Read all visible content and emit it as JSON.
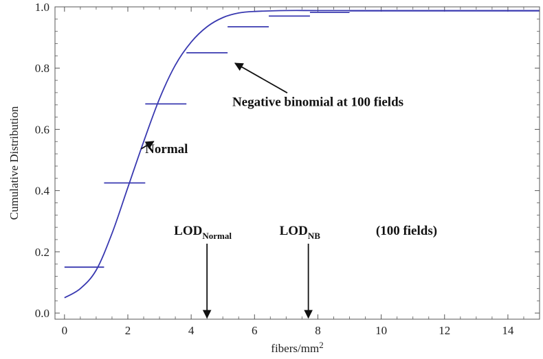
{
  "chart_data": {
    "type": "line",
    "xlabel": "fibers/mm",
    "xlabel_sup": "2",
    "ylabel": "Cumulative Distribution",
    "xlim": [
      -0.3,
      15
    ],
    "ylim": [
      -0.02,
      1.0
    ],
    "x_ticks": [
      0,
      2,
      4,
      6,
      8,
      10,
      12,
      14
    ],
    "y_ticks": [
      0.0,
      0.2,
      0.4,
      0.6,
      0.8,
      1.0
    ],
    "x_tick_labels": [
      "0",
      "2",
      "4",
      "6",
      "8",
      "10",
      "12",
      "14"
    ],
    "y_tick_labels": [
      "0.0",
      "0.2",
      "0.4",
      "0.6",
      "0.8",
      "1.0"
    ],
    "grid": false,
    "color": "#3838b0",
    "series": [
      {
        "kind": "curve",
        "x": [
          0,
          0.5,
          1,
          1.5,
          2,
          2.5,
          3,
          3.5,
          4,
          4.5,
          5,
          5.5,
          6,
          7,
          8,
          10,
          12,
          15
        ],
        "values": [
          0.05,
          0.08,
          0.14,
          0.26,
          0.41,
          0.56,
          0.7,
          0.81,
          0.885,
          0.935,
          0.965,
          0.98,
          0.985,
          0.988,
          0.988,
          0.988,
          0.988,
          0.988
        ]
      },
      {
        "kind": "steps",
        "segments": [
          {
            "x0": 0,
            "x1": 1.25,
            "y": 0.15
          },
          {
            "x0": 1.25,
            "x1": 2.55,
            "y": 0.425
          },
          {
            "x0": 2.55,
            "x1": 3.85,
            "y": 0.683
          },
          {
            "x0": 3.85,
            "x1": 5.15,
            "y": 0.85
          },
          {
            "x0": 5.15,
            "x1": 6.45,
            "y": 0.935
          },
          {
            "x0": 6.45,
            "x1": 7.75,
            "y": 0.97
          },
          {
            "x0": 7.75,
            "x1": 9.0,
            "y": 0.982
          },
          {
            "x0": 9.0,
            "x1": 15,
            "y": 0.987
          }
        ]
      }
    ],
    "annotations": [
      {
        "text": "Normal",
        "text_x": 4.5,
        "text_y": 0.5,
        "arrow_to": [
          2.75,
          0.565
        ]
      },
      {
        "text": "Negative binomial at 100 fields",
        "text_x": 6.6,
        "text_y": 0.69,
        "arrow_to": [
          5.3,
          0.825
        ]
      }
    ],
    "lod_markers": [
      {
        "label": "LOD",
        "sub": "Normal",
        "x": 4.5
      },
      {
        "label": "LOD",
        "sub": "NB",
        "x": 7.7
      }
    ],
    "lod_note": "(100 fields)"
  }
}
